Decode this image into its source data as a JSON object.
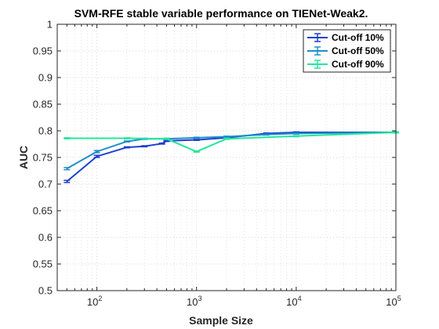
{
  "chart_data": {
    "type": "line",
    "title": "SVM-RFE stable variable performance on TIENet-Weak2.",
    "xlabel": "Sample Size",
    "ylabel": "AUC",
    "xscale": "log",
    "xlim": [
      40,
      100000
    ],
    "ylim": [
      0.5,
      1.0
    ],
    "grid": true,
    "legend_position": "top-right",
    "x_ticks": [
      {
        "value": 100,
        "base": "10",
        "exp": "2"
      },
      {
        "value": 1000,
        "base": "10",
        "exp": "3"
      },
      {
        "value": 10000,
        "base": "10",
        "exp": "4"
      },
      {
        "value": 100000,
        "base": "10",
        "exp": "5"
      }
    ],
    "y_ticks": [
      {
        "value": 0.5,
        "label": "0.5"
      },
      {
        "value": 0.55,
        "label": "0.55"
      },
      {
        "value": 0.6,
        "label": "0.6"
      },
      {
        "value": 0.65,
        "label": "0.65"
      },
      {
        "value": 0.7,
        "label": "0.7"
      },
      {
        "value": 0.75,
        "label": "0.75"
      },
      {
        "value": 0.8,
        "label": "0.8"
      },
      {
        "value": 0.85,
        "label": "0.85"
      },
      {
        "value": 0.9,
        "label": "0.9"
      },
      {
        "value": 0.95,
        "label": "0.95"
      },
      {
        "value": 1.0,
        "label": "1"
      }
    ],
    "series": [
      {
        "name": "Cut-off 10%",
        "color": "#1f3fcf",
        "x": [
          50,
          100,
          200,
          300,
          450,
          500,
          1000,
          2000,
          5000,
          10000,
          100000
        ],
        "y": [
          0.705,
          0.752,
          0.769,
          0.771,
          0.776,
          0.781,
          0.783,
          0.787,
          0.795,
          0.797,
          0.797
        ],
        "err": [
          0.002,
          0.002,
          0.001,
          0.001,
          0.001,
          0.001,
          0.001,
          0.001,
          0.001,
          0.001,
          0.001
        ]
      },
      {
        "name": "Cut-off 50%",
        "color": "#1e8fc8",
        "x": [
          50,
          100,
          200,
          300,
          500,
          1000,
          2000,
          5000,
          10000,
          100000
        ],
        "y": [
          0.729,
          0.761,
          0.78,
          0.785,
          0.785,
          0.787,
          0.789,
          0.793,
          0.795,
          0.797
        ],
        "err": [
          0.002,
          0.002,
          0.001,
          0.001,
          0.001,
          0.001,
          0.001,
          0.001,
          0.001,
          0.001
        ]
      },
      {
        "name": "Cut-off 90%",
        "color": "#22e89a",
        "x": [
          50,
          200,
          500,
          1000,
          2000,
          10000,
          100000
        ],
        "y": [
          0.786,
          0.786,
          0.785,
          0.761,
          0.785,
          0.79,
          0.797
        ],
        "err": [
          0.001,
          0.001,
          0.001,
          0.001,
          0.001,
          0.001,
          0.001
        ]
      }
    ]
  }
}
